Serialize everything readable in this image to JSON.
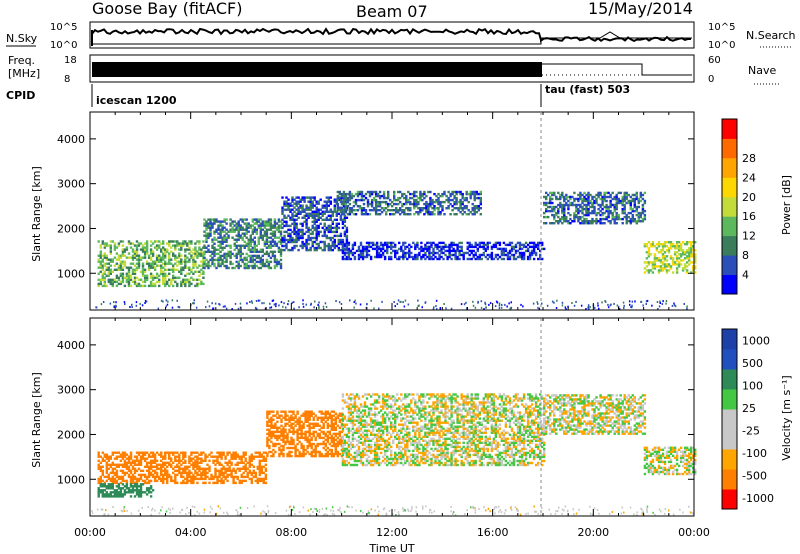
{
  "header": {
    "station": "Goose Bay (fitACF)",
    "beam": "Beam 07",
    "date": "15/May/2014"
  },
  "panels": {
    "sky": {
      "label": "N.Sky",
      "right_label": "N.Search",
      "ticks_left": [
        "10^5",
        "10^0"
      ],
      "ticks_right": [
        "10^5",
        "10^0"
      ]
    },
    "freq": {
      "label_1": "Freq.",
      "label_2": "[MHz]",
      "ticks_left": [
        "18",
        "8"
      ],
      "ticks_right": [
        "60",
        "0"
      ],
      "right_label": "Nave"
    },
    "cpid": {
      "label": "CPID",
      "modes": [
        "icescan 1200",
        "tau (fast) 503"
      ]
    }
  },
  "colors": {
    "power": [
      "#0000ff",
      "#2b4fb8",
      "#3a7d5c",
      "#5cb85c",
      "#c4dc3a",
      "#ffd700",
      "#ffa500",
      "#ff6a00",
      "#ff0000"
    ],
    "velocity": [
      "#ff0000",
      "#ff7f00",
      "#ffa500",
      "#c8c8c8",
      "#c8c8c8",
      "#44c844",
      "#2e8b57",
      "#2050c0",
      "#1c3fa8"
    ]
  },
  "chart_data": [
    {
      "type": "heatmap",
      "name": "power",
      "xlabel": "",
      "ylabel": "Slant Range [km]",
      "x_ticks": [
        "00:00",
        "04:00",
        "08:00",
        "12:00",
        "16:00",
        "20:00",
        "00:00"
      ],
      "y_ticks": [
        "1000",
        "2000",
        "3000",
        "4000"
      ],
      "ylim": [
        180,
        4600
      ],
      "colorbar": {
        "label": "Power [dB]",
        "ticks": [
          "4",
          "8",
          "12",
          "16",
          "20",
          "24",
          "28"
        ]
      },
      "regions": [
        {
          "t0": 0.3,
          "t1": 4.5,
          "r0": 700,
          "r1": 1700,
          "level": 16
        },
        {
          "t0": 4.5,
          "t1": 7.6,
          "r0": 1100,
          "r1": 2200,
          "level": 12
        },
        {
          "t0": 7.6,
          "t1": 10.2,
          "r0": 1500,
          "r1": 2700,
          "level": 8
        },
        {
          "t0": 9.8,
          "t1": 15.5,
          "r0": 2300,
          "r1": 2800,
          "level": 10
        },
        {
          "t0": 10.0,
          "t1": 18.0,
          "r0": 1300,
          "r1": 1700,
          "level": 6
        },
        {
          "t0": 18.0,
          "t1": 22.0,
          "r0": 2100,
          "r1": 2800,
          "level": 10
        },
        {
          "t0": 22.0,
          "t1": 24.0,
          "r0": 1000,
          "r1": 1700,
          "level": 20
        }
      ]
    },
    {
      "type": "heatmap",
      "name": "velocity",
      "xlabel": "Time UT",
      "ylabel": "Slant Range [km]",
      "x_ticks": [
        "00:00",
        "04:00",
        "08:00",
        "12:00",
        "16:00",
        "20:00",
        "00:00"
      ],
      "y_ticks": [
        "1000",
        "2000",
        "3000",
        "4000"
      ],
      "ylim": [
        180,
        4600
      ],
      "colorbar": {
        "label": "Velocity [m s⁻¹]",
        "ticks": [
          "1000",
          "500",
          "100",
          "25",
          "-25",
          "-100",
          "-500",
          "-1000"
        ]
      },
      "regions": [
        {
          "t0": 0.3,
          "t1": 7.0,
          "r0": 900,
          "r1": 1600,
          "level": -300
        },
        {
          "t0": 0.3,
          "t1": 2.5,
          "r0": 600,
          "r1": 900,
          "level": 200
        },
        {
          "t0": 7.0,
          "t1": 10.0,
          "r0": 1500,
          "r1": 2500,
          "level": -200
        },
        {
          "t0": 10.0,
          "t1": 18.0,
          "r0": 1300,
          "r1": 2900,
          "level": 0
        },
        {
          "t0": 18.0,
          "t1": 22.0,
          "r0": 2000,
          "r1": 2900,
          "level": 0
        },
        {
          "t0": 22.0,
          "t1": 24.0,
          "r0": 1100,
          "r1": 1700,
          "level": 0
        }
      ]
    }
  ]
}
